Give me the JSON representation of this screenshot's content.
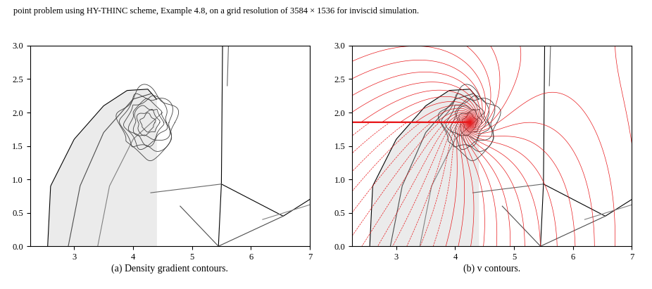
{
  "caption": "point problem using HY-THINC scheme, Example 4.8, on a grid resolution of 3584 × 1536 for inviscid simulation.",
  "chart_data": [
    {
      "type": "contour",
      "title": "(a) Density gradient contours.",
      "xlim": [
        2.25,
        7
      ],
      "xticks": [
        3,
        4,
        5,
        6,
        7
      ],
      "ylim": [
        0,
        3
      ],
      "yticks": [
        {
          "value": 0,
          "label": "0.0"
        },
        {
          "value": 0.5,
          "label": "0.5"
        },
        {
          "value": 1,
          "label": "1.0"
        },
        {
          "value": 1.5,
          "label": "1.5"
        },
        {
          "value": 2,
          "label": "2.0"
        },
        {
          "value": 2.5,
          "label": "2.5"
        },
        {
          "value": 3,
          "label": "3.0"
        }
      ],
      "color": "#000000"
    },
    {
      "type": "contour",
      "title": "(b) v contours.",
      "xlim": [
        2.25,
        7
      ],
      "xticks": [
        3,
        4,
        5,
        6,
        7
      ],
      "ylim": [
        0,
        3
      ],
      "yticks": [
        {
          "value": 0,
          "label": "0.0"
        },
        {
          "value": 0.5,
          "label": "0.5"
        },
        {
          "value": 1,
          "label": "1.0"
        },
        {
          "value": 1.5,
          "label": "1.5"
        },
        {
          "value": 2,
          "label": "2.0"
        },
        {
          "value": 2.5,
          "label": "2.5"
        },
        {
          "value": 3,
          "label": "3.0"
        }
      ],
      "color": "#e8191c"
    }
  ]
}
